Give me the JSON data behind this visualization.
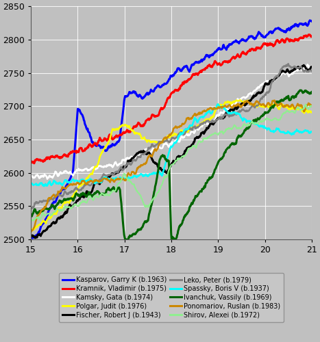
{
  "xlim": [
    15,
    21
  ],
  "ylim": [
    2500,
    2850
  ],
  "xticks": [
    15,
    16,
    17,
    18,
    19,
    20,
    21
  ],
  "yticks": [
    2500,
    2550,
    2600,
    2650,
    2700,
    2750,
    2800,
    2850
  ],
  "background_color": "#c0c0c0",
  "legend_background": "#c8c8c8",
  "players": [
    {
      "name": "Kasparov, Garry K (b.1963)",
      "color": "#0000ff",
      "lw": 2.2
    },
    {
      "name": "Kramnik, Vladimir (b.1975)",
      "color": "#ff0000",
      "lw": 2.2
    },
    {
      "name": "Kamsky, Gata (b.1974)",
      "color": "#ffffff",
      "lw": 1.8
    },
    {
      "name": "Polgar, Judit (b.1976)",
      "color": "#ffff00",
      "lw": 1.8
    },
    {
      "name": "Fischer, Robert J (b.1943)",
      "color": "#000000",
      "lw": 2.2
    },
    {
      "name": "Leko, Peter (b.1979)",
      "color": "#808080",
      "lw": 1.8
    },
    {
      "name": "Spassky, Boris V (b.1937)",
      "color": "#00ffff",
      "lw": 1.8
    },
    {
      "name": "Ivanchuk, Vassily (b.1969)",
      "color": "#006400",
      "lw": 2.2
    },
    {
      "name": "Ponomariov, Ruslan (b.1983)",
      "color": "#cc8800",
      "lw": 1.8
    },
    {
      "name": "Shirov, Alexei (b.1972)",
      "color": "#90ee90",
      "lw": 1.5
    }
  ],
  "kasparov": {
    "x": [
      15.0,
      15.1,
      15.2,
      15.3,
      15.4,
      15.5,
      15.6,
      15.7,
      15.8,
      15.9,
      16.0,
      16.05,
      16.1,
      16.2,
      16.3,
      16.4,
      16.5,
      16.6,
      16.7,
      16.8,
      16.9,
      17.0,
      17.05,
      17.1,
      17.2,
      17.3,
      17.4,
      17.5,
      17.6,
      17.7,
      17.8,
      17.9,
      18.0,
      18.2,
      18.4,
      18.6,
      18.8,
      19.0,
      19.2,
      19.4,
      19.6,
      19.8,
      20.0,
      20.2,
      20.4,
      20.6,
      20.8,
      21.0
    ],
    "y": [
      2503,
      2505,
      2515,
      2530,
      2545,
      2555,
      2565,
      2575,
      2585,
      2600,
      2695,
      2692,
      2688,
      2665,
      2648,
      2640,
      2638,
      2635,
      2638,
      2642,
      2648,
      2710,
      2718,
      2722,
      2718,
      2715,
      2715,
      2720,
      2722,
      2728,
      2730,
      2735,
      2745,
      2755,
      2760,
      2768,
      2775,
      2785,
      2790,
      2795,
      2800,
      2805,
      2808,
      2812,
      2815,
      2818,
      2822,
      2825
    ]
  },
  "kramnik": {
    "x": [
      15.0,
      15.2,
      15.4,
      15.6,
      15.8,
      16.0,
      16.2,
      16.4,
      16.6,
      16.8,
      17.0,
      17.2,
      17.4,
      17.6,
      17.8,
      18.0,
      18.2,
      18.4,
      18.6,
      18.8,
      19.0,
      19.2,
      19.4,
      19.6,
      19.8,
      20.0,
      20.2,
      20.4,
      20.6,
      20.8,
      21.0
    ],
    "y": [
      2618,
      2620,
      2622,
      2625,
      2628,
      2632,
      2638,
      2645,
      2650,
      2652,
      2660,
      2668,
      2675,
      2685,
      2695,
      2720,
      2730,
      2740,
      2750,
      2758,
      2762,
      2768,
      2775,
      2782,
      2788,
      2792,
      2796,
      2800,
      2800,
      2802,
      2808
    ]
  },
  "kamsky": {
    "x": [
      15.0,
      15.2,
      15.4,
      15.6,
      15.8,
      16.0,
      16.2,
      16.4,
      16.6,
      16.8,
      17.0,
      17.2,
      17.4,
      17.6,
      17.8,
      18.0,
      18.2,
      18.4,
      18.6,
      18.8,
      19.0,
      19.2,
      19.4,
      19.6,
      19.8,
      20.0,
      20.2,
      20.4,
      20.6,
      20.8,
      21.0
    ],
    "y": [
      2595,
      2595,
      2597,
      2598,
      2600,
      2603,
      2605,
      2608,
      2610,
      2613,
      2618,
      2622,
      2628,
      2632,
      2638,
      2645,
      2652,
      2660,
      2668,
      2675,
      2685,
      2695,
      2705,
      2715,
      2725,
      2735,
      2742,
      2748,
      2752,
      2756,
      2758
    ]
  },
  "polgar": {
    "x": [
      15.0,
      15.1,
      15.2,
      15.3,
      15.4,
      15.5,
      15.6,
      15.7,
      15.8,
      15.9,
      16.0,
      16.1,
      16.2,
      16.3,
      16.4,
      16.5,
      16.6,
      16.7,
      16.8,
      16.9,
      17.0,
      17.1,
      17.2,
      17.3,
      17.5,
      17.7,
      17.9,
      18.0,
      18.2,
      18.4,
      18.6,
      18.8,
      19.0,
      19.2,
      19.4,
      19.6,
      19.8,
      20.0,
      20.2,
      20.4,
      20.6,
      20.8,
      21.0
    ],
    "y": [
      2515,
      2518,
      2522,
      2527,
      2532,
      2538,
      2545,
      2550,
      2558,
      2565,
      2575,
      2582,
      2590,
      2600,
      2612,
      2625,
      2640,
      2655,
      2665,
      2670,
      2672,
      2668,
      2662,
      2655,
      2648,
      2645,
      2648,
      2652,
      2658,
      2665,
      2672,
      2680,
      2700,
      2705,
      2708,
      2705,
      2702,
      2700,
      2700,
      2698,
      2695,
      2693,
      2692
    ]
  },
  "fischer": {
    "x": [
      15.0,
      15.2,
      15.4,
      15.6,
      15.8,
      16.0,
      16.2,
      16.4,
      16.6,
      16.8,
      17.0,
      17.1,
      17.2,
      17.3,
      17.4,
      17.5,
      17.6,
      17.7,
      17.8,
      17.9,
      18.0,
      18.2,
      18.4,
      18.6,
      18.8,
      19.0,
      19.2,
      19.4,
      19.6,
      19.8,
      20.0,
      20.2,
      20.4,
      20.6,
      20.8,
      21.0
    ],
    "y": [
      2502,
      2508,
      2518,
      2530,
      2545,
      2558,
      2570,
      2582,
      2592,
      2600,
      2608,
      2618,
      2625,
      2630,
      2635,
      2630,
      2618,
      2610,
      2605,
      2603,
      2610,
      2625,
      2640,
      2655,
      2668,
      2680,
      2690,
      2698,
      2705,
      2715,
      2730,
      2742,
      2750,
      2755,
      2758,
      2760
    ]
  },
  "leko": {
    "x": [
      15.0,
      15.2,
      15.4,
      15.6,
      15.8,
      16.0,
      16.2,
      16.4,
      16.6,
      16.8,
      17.0,
      17.2,
      17.4,
      17.6,
      17.8,
      18.0,
      18.2,
      18.4,
      18.6,
      18.8,
      19.0,
      19.2,
      19.4,
      19.6,
      19.8,
      20.0,
      20.1,
      20.2,
      20.3,
      20.4,
      20.5,
      20.6,
      20.7,
      20.8,
      20.9,
      21.0
    ],
    "y": [
      2548,
      2555,
      2560,
      2565,
      2570,
      2575,
      2582,
      2588,
      2595,
      2600,
      2608,
      2618,
      2628,
      2638,
      2645,
      2650,
      2658,
      2665,
      2670,
      2678,
      2682,
      2686,
      2690,
      2695,
      2700,
      2718,
      2728,
      2740,
      2750,
      2758,
      2762,
      2760,
      2758,
      2755,
      2752,
      2750
    ]
  },
  "spassky": {
    "x": [
      15.0,
      15.2,
      15.4,
      15.6,
      15.8,
      16.0,
      16.2,
      16.4,
      16.6,
      16.8,
      17.0,
      17.2,
      17.4,
      17.6,
      17.8,
      18.0,
      18.2,
      18.4,
      18.6,
      18.8,
      19.0,
      19.2,
      19.4,
      19.6,
      19.8,
      20.0,
      20.2,
      20.4,
      20.6,
      20.8,
      21.0
    ],
    "y": [
      2583,
      2583,
      2584,
      2585,
      2586,
      2587,
      2588,
      2589,
      2590,
      2591,
      2592,
      2594,
      2596,
      2598,
      2600,
      2638,
      2658,
      2672,
      2682,
      2692,
      2700,
      2695,
      2688,
      2680,
      2673,
      2668,
      2665,
      2662,
      2660,
      2660,
      2660
    ]
  },
  "ivanchuk": {
    "x": [
      15.0,
      15.2,
      15.4,
      15.6,
      15.8,
      16.0,
      16.2,
      16.4,
      16.6,
      16.8,
      16.9,
      17.0,
      17.02,
      17.1,
      17.2,
      17.3,
      17.4,
      17.5,
      17.6,
      17.7,
      17.75,
      17.8,
      17.85,
      17.9,
      17.95,
      18.0,
      18.02,
      18.1,
      18.2,
      18.3,
      18.4,
      18.5,
      18.6,
      18.7,
      18.8,
      18.9,
      19.0,
      19.2,
      19.4,
      19.6,
      19.8,
      20.0,
      20.2,
      20.4,
      20.6,
      20.8,
      21.0
    ],
    "y": [
      2538,
      2542,
      2548,
      2554,
      2560,
      2565,
      2568,
      2570,
      2572,
      2574,
      2575,
      2505,
      2500,
      2503,
      2508,
      2515,
      2522,
      2530,
      2560,
      2595,
      2618,
      2625,
      2625,
      2620,
      2615,
      2500,
      2502,
      2505,
      2520,
      2535,
      2548,
      2560,
      2570,
      2578,
      2588,
      2600,
      2615,
      2635,
      2650,
      2665,
      2678,
      2690,
      2700,
      2708,
      2715,
      2720,
      2725
    ]
  },
  "ponomariov": {
    "x": [
      15.0,
      15.1,
      15.2,
      15.3,
      15.4,
      15.5,
      15.6,
      15.7,
      15.8,
      15.9,
      16.0,
      16.1,
      16.2,
      16.3,
      16.4,
      16.5,
      16.6,
      16.7,
      16.8,
      16.9,
      17.0,
      17.2,
      17.4,
      17.6,
      17.8,
      18.0,
      18.2,
      18.4,
      18.6,
      18.8,
      19.0,
      19.2,
      19.4,
      19.6,
      19.8,
      20.0,
      20.2,
      20.4,
      20.6,
      20.8,
      21.0
    ],
    "y": [
      2512,
      2525,
      2538,
      2550,
      2560,
      2568,
      2573,
      2577,
      2580,
      2582,
      2583,
      2584,
      2585,
      2586,
      2587,
      2588,
      2589,
      2590,
      2590,
      2591,
      2592,
      2600,
      2612,
      2628,
      2645,
      2660,
      2672,
      2682,
      2690,
      2695,
      2698,
      2700,
      2702,
      2703,
      2703,
      2703,
      2703,
      2702,
      2701,
      2700,
      2700
    ]
  },
  "shirov": {
    "x": [
      15.0,
      15.2,
      15.4,
      15.6,
      15.8,
      16.0,
      16.2,
      16.4,
      16.6,
      16.8,
      17.0,
      17.1,
      17.2,
      17.3,
      17.4,
      17.5,
      17.6,
      17.7,
      17.8,
      18.0,
      18.2,
      18.4,
      18.6,
      18.8,
      19.0,
      19.2,
      19.4,
      19.6,
      19.8,
      20.0,
      20.2,
      20.4,
      20.6,
      20.8,
      21.0
    ],
    "y": [
      2528,
      2533,
      2538,
      2543,
      2548,
      2553,
      2558,
      2563,
      2568,
      2573,
      2598,
      2590,
      2580,
      2570,
      2558,
      2548,
      2558,
      2570,
      2582,
      2610,
      2622,
      2635,
      2645,
      2655,
      2660,
      2665,
      2668,
      2672,
      2675,
      2678,
      2682,
      2688,
      2693,
      2697,
      2700
    ]
  }
}
